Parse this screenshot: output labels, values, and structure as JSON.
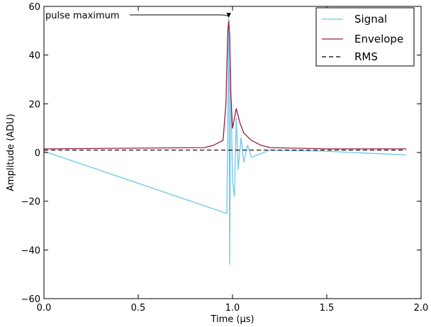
{
  "chart_data": {
    "type": "line",
    "xlabel": "Time (μs)",
    "ylabel": "Amplitude (ADU)",
    "xlim": [
      0.0,
      2.0
    ],
    "ylim": [
      -60,
      60
    ],
    "xticks": [
      0.0,
      0.5,
      1.0,
      1.5,
      2.0
    ],
    "xtick_labels": [
      "0.0",
      "0.5",
      "1.0",
      "1.5",
      "2.0"
    ],
    "yticks": [
      -60,
      -40,
      -20,
      0,
      20,
      40,
      60
    ],
    "ytick_labels": [
      "−60",
      "−40",
      "−20",
      "0",
      "20",
      "40",
      "60"
    ],
    "grid": false,
    "legend_position": "top-right",
    "series": [
      {
        "name": "Signal",
        "color": "#6cc7ee",
        "style": "solid",
        "x": [
          0.0,
          0.97,
          0.98,
          0.985,
          0.99,
          1.0,
          1.01,
          1.02,
          1.03,
          1.045,
          1.06,
          1.08,
          1.1,
          1.2,
          1.5,
          1.92
        ],
        "values": [
          0.5,
          -25,
          55,
          -46,
          35,
          -12,
          -18,
          14,
          -7,
          6,
          -4,
          3,
          -2,
          1,
          0.5,
          -1
        ]
      },
      {
        "name": "Envelope",
        "color": "#9a1b3c",
        "style": "solid",
        "x": [
          0.0,
          0.85,
          0.9,
          0.95,
          0.965,
          0.975,
          0.98,
          0.985,
          0.99,
          1.0,
          1.01,
          1.02,
          1.04,
          1.06,
          1.1,
          1.15,
          1.2,
          1.5,
          1.92
        ],
        "values": [
          1.5,
          2,
          3,
          5,
          20,
          50,
          54,
          48,
          25,
          10,
          14,
          18,
          12,
          8,
          5,
          3,
          2,
          1.5,
          1.5
        ]
      },
      {
        "name": "RMS",
        "color": "#000000",
        "style": "dashed",
        "x": [
          0.0,
          1.92
        ],
        "values": [
          1.0,
          1.0
        ]
      }
    ],
    "annotations": [
      {
        "text": "pulse maximum",
        "x": 0.98,
        "y": 55
      }
    ]
  }
}
